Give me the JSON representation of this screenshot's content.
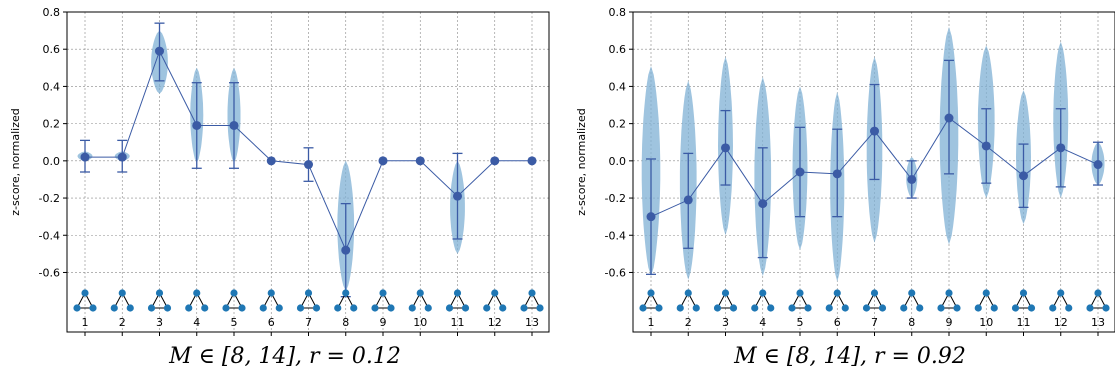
{
  "chart_data": [
    {
      "type": "violin",
      "caption": "M ∈ [8, 14], r = 0.12",
      "ylabel": "z-score, normalized",
      "ylim": [
        -0.92,
        0.8
      ],
      "yticks": [
        "0.8",
        "0.6",
        "0.4",
        "0.2",
        "0.0",
        "-0.2",
        "-0.4",
        "-0.6"
      ],
      "ytick_values": [
        0.8,
        0.6,
        0.4,
        0.2,
        0.0,
        -0.2,
        -0.4,
        -0.6
      ],
      "categories": [
        "1",
        "2",
        "3",
        "4",
        "5",
        "6",
        "7",
        "8",
        "9",
        "10",
        "11",
        "12",
        "13"
      ],
      "grid": true,
      "series": [
        {
          "means": [
            0.02,
            0.02,
            0.59,
            0.19,
            0.19,
            0.0,
            -0.02,
            -0.48,
            0.0,
            0.0,
            -0.19,
            0.0,
            0.0
          ],
          "err_low": [
            -0.06,
            -0.06,
            0.43,
            -0.04,
            -0.04,
            0.0,
            -0.11,
            -0.73,
            0.0,
            0.0,
            -0.42,
            0.0,
            0.0
          ],
          "err_high": [
            0.11,
            0.11,
            0.74,
            0.42,
            0.42,
            0.0,
            0.07,
            -0.23,
            0.0,
            0.0,
            0.04,
            0.0,
            0.0
          ],
          "violin_min": [
            0.0,
            0.0,
            0.36,
            -0.01,
            -0.01,
            0.0,
            -0.04,
            -0.7,
            0.0,
            0.0,
            -0.5,
            0.0,
            0.0
          ],
          "violin_max": [
            0.05,
            0.05,
            0.7,
            0.5,
            0.5,
            0.0,
            0.0,
            0.0,
            0.0,
            0.0,
            0.0,
            0.0,
            0.0
          ],
          "violin_width": [
            0.4,
            0.4,
            0.45,
            0.35,
            0.35,
            0.0,
            0.2,
            0.45,
            0.0,
            0.0,
            0.4,
            0.0,
            0.0
          ]
        }
      ]
    },
    {
      "type": "violin",
      "caption": "M ∈ [8, 14], r = 0.92",
      "ylabel": "z-score, normalized",
      "ylim": [
        -0.92,
        0.8
      ],
      "yticks": [
        "0.8",
        "0.6",
        "0.4",
        "0.2",
        "0.0",
        "-0.2",
        "-0.4",
        "-0.6"
      ],
      "ytick_values": [
        0.8,
        0.6,
        0.4,
        0.2,
        0.0,
        -0.2,
        -0.4,
        -0.6
      ],
      "categories": [
        "1",
        "2",
        "3",
        "4",
        "5",
        "6",
        "7",
        "8",
        "9",
        "10",
        "11",
        "12",
        "13"
      ],
      "grid": true,
      "series": [
        {
          "means": [
            -0.3,
            -0.21,
            0.07,
            -0.23,
            -0.06,
            -0.07,
            0.16,
            -0.1,
            0.23,
            0.08,
            -0.08,
            0.07,
            -0.02
          ],
          "err_low": [
            -0.61,
            -0.47,
            -0.13,
            -0.52,
            -0.3,
            -0.3,
            -0.1,
            -0.2,
            -0.07,
            -0.12,
            -0.25,
            -0.14,
            -0.13
          ],
          "err_high": [
            0.01,
            0.04,
            0.27,
            0.07,
            0.18,
            0.17,
            0.41,
            0.0,
            0.54,
            0.28,
            0.09,
            0.28,
            0.1
          ],
          "violin_min": [
            -0.62,
            -0.64,
            -0.4,
            -0.62,
            -0.48,
            -0.65,
            -0.44,
            -0.2,
            -0.45,
            -0.2,
            -0.34,
            -0.2,
            -0.13
          ],
          "violin_max": [
            0.51,
            0.43,
            0.56,
            0.45,
            0.4,
            0.37,
            0.56,
            0.02,
            0.72,
            0.62,
            0.38,
            0.64,
            0.1
          ],
          "violin_width": [
            0.5,
            0.45,
            0.4,
            0.45,
            0.4,
            0.38,
            0.42,
            0.3,
            0.5,
            0.45,
            0.4,
            0.4,
            0.35
          ]
        }
      ]
    }
  ],
  "colors": {
    "mean": "#3b5ba5",
    "violin": "#7fb0d4",
    "node": "#1f77b4",
    "grid": "#888888"
  },
  "icons": "triad-motif-icons"
}
